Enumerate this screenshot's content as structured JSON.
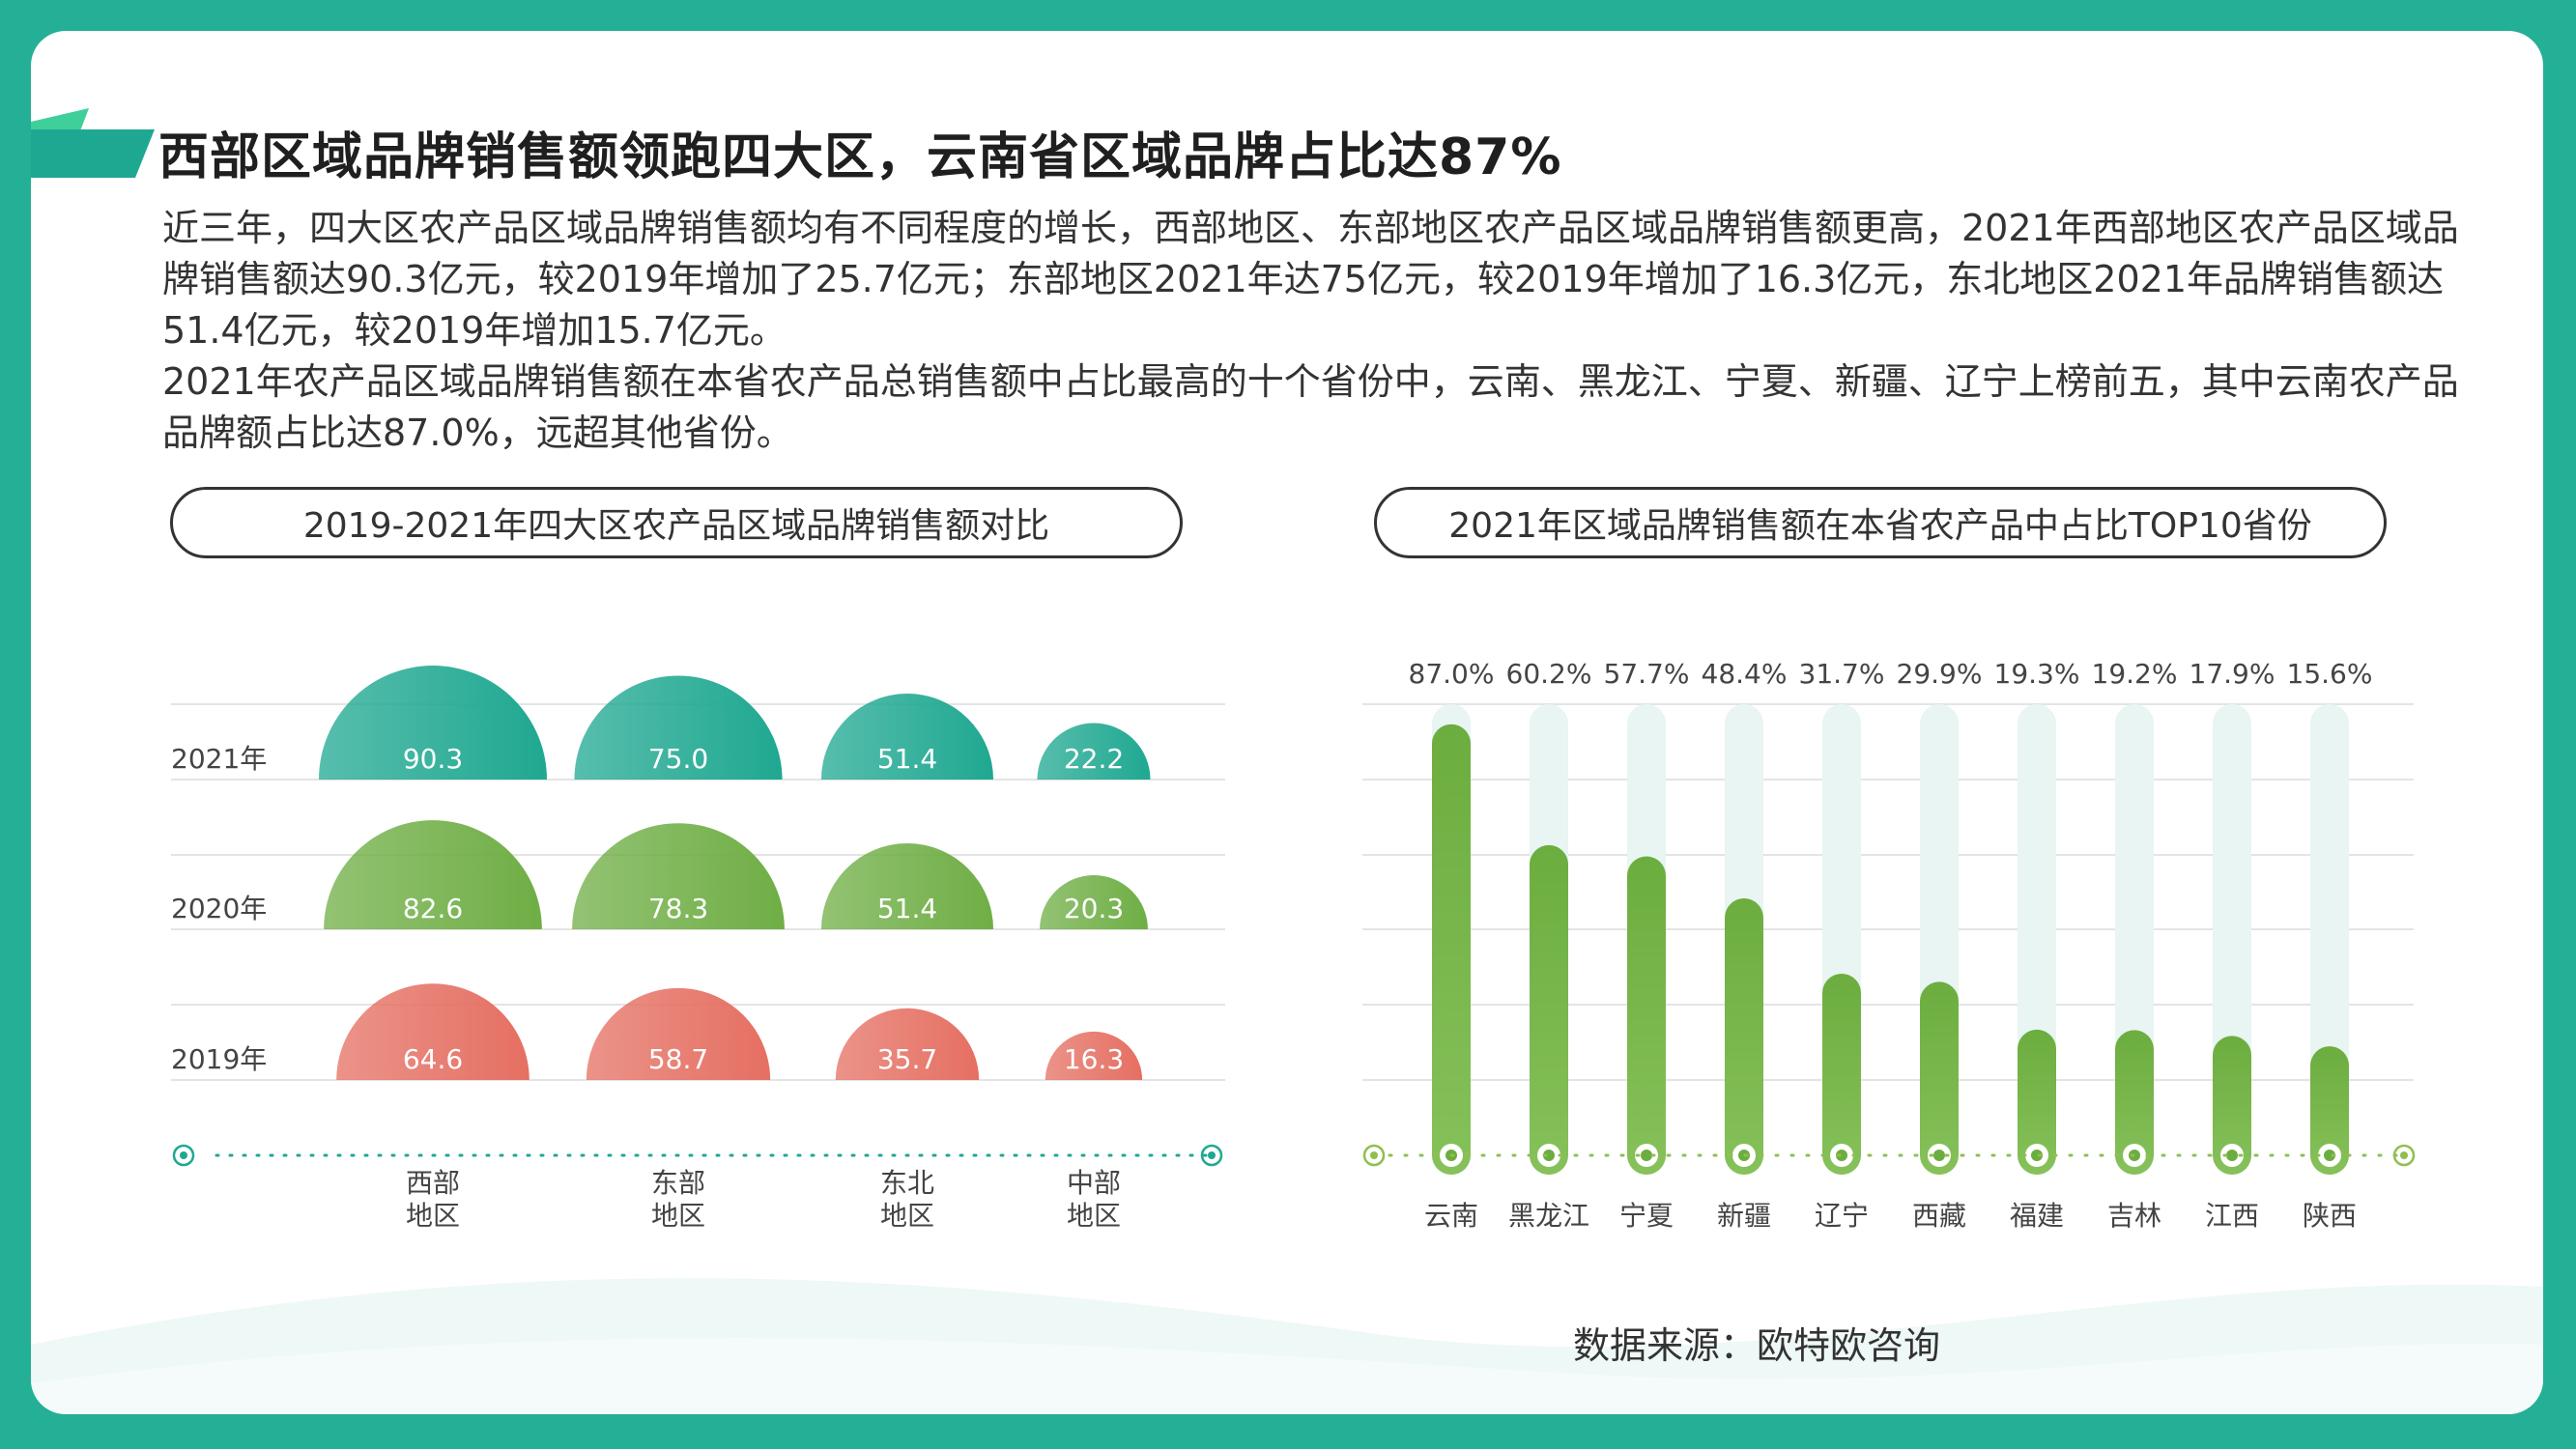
{
  "header": {
    "title": "西部区域品牌销售额领跑四大区，云南省区域品牌占比达87%"
  },
  "description": {
    "paragraph1": "近三年，四大区农产品区域品牌销售额均有不同程度的增长，西部地区、东部地区农产品区域品牌销售额更高，2021年西部地区农产品区域品牌销售额达90.3亿元，较2019年增加了25.7亿元；东部地区2021年达75亿元，较2019年增加了16.3亿元，东北地区2021年品牌销售额达51.4亿元，较2019年增加15.7亿元。",
    "paragraph2": "2021年农产品区域品牌销售额在本省农产品总销售额中占比最高的十个省份中，云南、黑龙江、宁夏、新疆、辽宁上榜前五，其中云南农产品品牌额占比达87.0%，远超其他省份。"
  },
  "source": "数据来源：欧特欧咨询",
  "colors": {
    "background": "#23b096",
    "teal": "#1fa891",
    "green": "#6fae45",
    "red": "#e56f62",
    "bar_track": "#e8f5f2"
  },
  "chart_data": [
    {
      "type": "bar",
      "title": "2019-2021年四大区农产品区域品牌销售额对比",
      "categories": [
        "西部\n地区",
        "东部\n地区",
        "东北\n地区",
        "中部\n地区"
      ],
      "series": [
        {
          "name": "2021年",
          "values": [
            90.3,
            75.0,
            51.4,
            22.2
          ],
          "labels": [
            "90.3",
            "75.0",
            "51.4",
            "22.2"
          ]
        },
        {
          "name": "2020年",
          "values": [
            82.6,
            78.3,
            51.4,
            20.3
          ],
          "labels": [
            "82.6",
            "78.3",
            "51.4",
            "20.3"
          ]
        },
        {
          "name": "2019年",
          "values": [
            64.6,
            58.7,
            35.7,
            16.3
          ],
          "labels": [
            "64.6",
            "58.7",
            "35.7",
            "16.3"
          ]
        }
      ]
    },
    {
      "type": "bar",
      "title": "2021年区域品牌销售额在本省农产品中占比TOP10省份",
      "categories": [
        "云南",
        "黑龙江",
        "宁夏",
        "新疆",
        "辽宁",
        "西藏",
        "福建",
        "吉林",
        "江西",
        "陕西"
      ],
      "values": [
        87.0,
        60.2,
        57.7,
        48.4,
        31.7,
        29.9,
        19.3,
        19.2,
        17.9,
        15.6
      ],
      "labels": [
        "87.0%",
        "60.2%",
        "57.7%",
        "48.4%",
        "31.7%",
        "29.9%",
        "19.3%",
        "19.2%",
        "17.9%",
        "15.6%"
      ],
      "ylim": [
        0,
        100
      ]
    }
  ]
}
